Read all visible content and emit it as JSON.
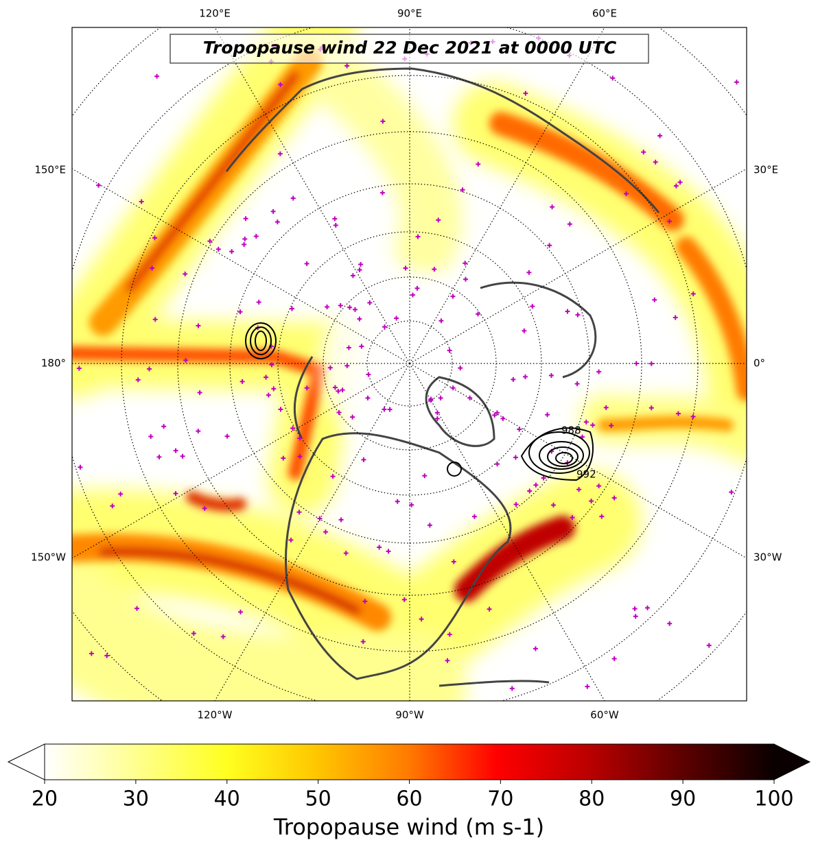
{
  "map": {
    "title": "Tropopause wind 22 Dec 2021 at 0000 UTC",
    "lon_labels": {
      "top": [
        "120°E",
        "90°E",
        "60°E"
      ],
      "left": [
        "150°E",
        "180°",
        "150°W"
      ],
      "right": [
        "30°E",
        "0°",
        "30°W"
      ],
      "bottom": [
        "120°W",
        "90°W",
        "60°W"
      ]
    },
    "contour_labels": [
      "988",
      "992"
    ]
  },
  "colorbar": {
    "label": "Tropopause wind (m s-1)",
    "lim": [
      20,
      100
    ],
    "ticks": [
      20,
      30,
      40,
      50,
      60,
      70,
      80,
      90,
      100
    ]
  }
}
